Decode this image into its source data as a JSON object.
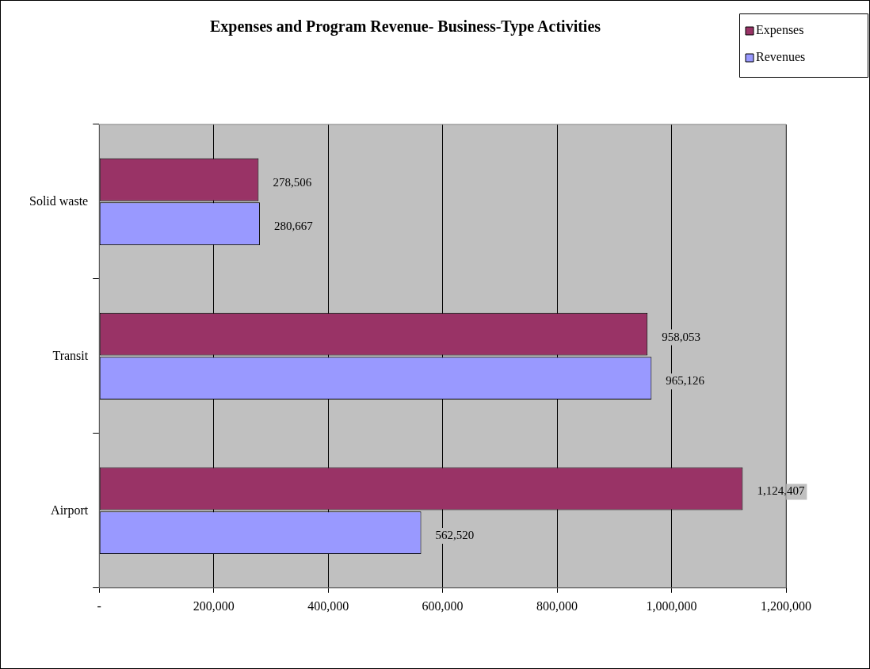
{
  "chart_data": {
    "type": "bar",
    "orientation": "horizontal",
    "title": "Expenses and Program Revenue- Business-Type Activities",
    "categories": [
      "Solid waste",
      "Transit",
      "Airport"
    ],
    "series": [
      {
        "name": "Expenses",
        "color": "#993366",
        "values": [
          278506,
          958053,
          1124407
        ],
        "value_labels": [
          "278,506",
          "958,053",
          "1,124,407"
        ]
      },
      {
        "name": "Revenues",
        "color": "#9999ff",
        "values": [
          280667,
          965126,
          562520
        ],
        "value_labels": [
          "280,667",
          "965,126",
          "562,520"
        ]
      }
    ],
    "xlim": [
      0,
      1200000
    ],
    "xticks": [
      {
        "value": 0,
        "label": "-"
      },
      {
        "value": 200000,
        "label": "200,000"
      },
      {
        "value": 400000,
        "label": "400,000"
      },
      {
        "value": 600000,
        "label": "600,000"
      },
      {
        "value": 800000,
        "label": "800,000"
      },
      {
        "value": 1000000,
        "label": "1,000,000"
      },
      {
        "value": 1200000,
        "label": "1,200,000"
      }
    ],
    "grid": "x",
    "legend": "top right"
  }
}
